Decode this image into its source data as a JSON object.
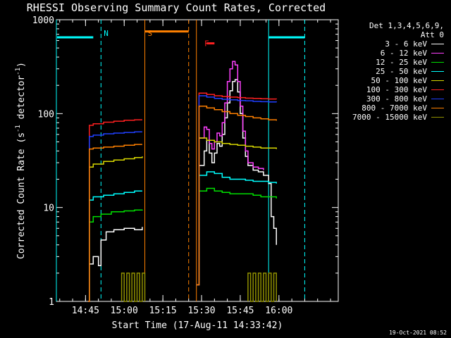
{
  "title": "RHESSI Observing Summary Count Rates, Corrected",
  "timestamp": "19-Oct-2021 08:52",
  "legend": {
    "header_line1": "Det 1,3,4,5,6,9,",
    "header_line2": "Att 0",
    "items": [
      {
        "label": "3 - 6 keV",
        "color": "#ffffff"
      },
      {
        "label": "6 - 12 keV",
        "color": "#ff40ff"
      },
      {
        "label": "12 - 25 keV",
        "color": "#00e000"
      },
      {
        "label": "25 - 50 keV",
        "color": "#00ffff"
      },
      {
        "label": "50 - 100 keV",
        "color": "#d8d800"
      },
      {
        "label": "100 - 300 keV",
        "color": "#ff2020"
      },
      {
        "label": "300 - 800 keV",
        "color": "#2040ff"
      },
      {
        "label": "800 - 7000 keV",
        "color": "#ff8000"
      },
      {
        "label": "7000 - 15000 keV",
        "color": "#909000"
      }
    ]
  },
  "chart_data": {
    "type": "line",
    "title": "RHESSI Observing Summary Count Rates, Corrected",
    "xlabel": "Start Time (17-Aug-11 14:33:42)",
    "ylabel": "Corrected Count Rate (s-1 detector-1)",
    "ylabel_parts": {
      "main": "Corrected Count Rate (s",
      "exp1": "-1",
      "mid": " detector",
      "exp2": "-1",
      "end": ")"
    },
    "y_scale": "log",
    "ylim": [
      1,
      1000
    ],
    "xlim": [
      "14:33:42",
      "16:23:00"
    ],
    "x_ticks": [
      "14:45",
      "15:00",
      "15:15",
      "15:30",
      "15:45",
      "16:00"
    ],
    "y_ticks": [
      "1",
      "10",
      "100",
      "1000"
    ],
    "annotations": [
      {
        "text": "N",
        "time": "14:51",
        "color": "#00ffff"
      },
      {
        "text": "S",
        "time": "15:08",
        "color": "#ff8000"
      },
      {
        "text": "F",
        "time": "15:30",
        "color": "#ff2020"
      }
    ],
    "markers": [
      {
        "type": "night_bar",
        "from": "14:33:42",
        "to": "14:48",
        "y": 650,
        "color": "#00ffff"
      },
      {
        "type": "night_bar",
        "from": "15:56",
        "to": "16:10",
        "y": 650,
        "color": "#00ffff"
      },
      {
        "type": "saa_bar",
        "from": "15:08",
        "to": "15:25",
        "y": 750,
        "color": "#ff8000"
      },
      {
        "type": "flare_bar",
        "from": "15:32",
        "to": "15:35",
        "y": 560,
        "color": "#ff2020"
      }
    ],
    "vlines": [
      {
        "time": "14:33:42",
        "color": "#00ffff",
        "style": "solid"
      },
      {
        "time": "14:51",
        "color": "#00ffff",
        "style": "dashed"
      },
      {
        "time": "15:08",
        "color": "#ff8000",
        "style": "solid"
      },
      {
        "time": "15:25",
        "color": "#ff8000",
        "style": "dashed"
      },
      {
        "time": "15:28",
        "color": "#ff8000",
        "style": "solid"
      },
      {
        "time": "15:56",
        "color": "#00ffff",
        "style": "solid"
      },
      {
        "time": "16:10",
        "color": "#00ffff",
        "style": "dashed"
      }
    ],
    "series": [
      {
        "name": "3 - 6 keV",
        "color": "#ffffff",
        "segments": [
          [
            [
              "14:46",
              1.0
            ],
            [
              "14:46.5",
              2.5
            ],
            [
              "14:48",
              3.0
            ],
            [
              "14:50",
              2.4
            ],
            [
              "14:51",
              4.5
            ],
            [
              "14:53",
              5.5
            ],
            [
              "14:56",
              5.8
            ],
            [
              "15:00",
              6.0
            ],
            [
              "15:04",
              5.8
            ],
            [
              "15:07",
              6.2
            ]
          ],
          [
            [
              "15:28",
              1.5
            ],
            [
              "15:29",
              28
            ],
            [
              "15:31",
              40
            ],
            [
              "15:32",
              52
            ],
            [
              "15:33",
              38
            ],
            [
              "15:34",
              30
            ],
            [
              "15:35",
              38
            ],
            [
              "15:36",
              48
            ],
            [
              "15:37",
              45
            ],
            [
              "15:38",
              60
            ],
            [
              "15:39",
              90
            ],
            [
              "15:40",
              130
            ],
            [
              "15:41",
              175
            ],
            [
              "15:42",
              220
            ],
            [
              "15:43",
              230
            ],
            [
              "15:44",
              170
            ],
            [
              "15:45",
              100
            ],
            [
              "15:46",
              55
            ],
            [
              "15:47",
              35
            ],
            [
              "15:48",
              28
            ],
            [
              "15:50",
              25
            ],
            [
              "15:52",
              24
            ],
            [
              "15:54",
              22
            ],
            [
              "15:56",
              18
            ],
            [
              "15:57",
              8
            ],
            [
              "15:58",
              6
            ],
            [
              "15:59",
              4
            ]
          ]
        ]
      },
      {
        "name": "6 - 12 keV",
        "color": "#ff40ff",
        "segments": [
          [
            [
              "15:28",
              1.5
            ],
            [
              "15:29",
              55
            ],
            [
              "15:31",
              72
            ],
            [
              "15:32",
              68
            ],
            [
              "15:33",
              48
            ],
            [
              "15:34",
              42
            ],
            [
              "15:35",
              50
            ],
            [
              "15:36",
              62
            ],
            [
              "15:37",
              58
            ],
            [
              "15:38",
              80
            ],
            [
              "15:39",
              130
            ],
            [
              "15:40",
              220
            ],
            [
              "15:41",
              300
            ],
            [
              "15:42",
              360
            ],
            [
              "15:43",
              330
            ],
            [
              "15:44",
              220
            ],
            [
              "15:45",
              120
            ],
            [
              "15:46",
              65
            ],
            [
              "15:47",
              40
            ],
            [
              "15:48",
              30
            ],
            [
              "15:50",
              27
            ],
            [
              "15:52",
              26
            ],
            [
              "15:54",
              25
            ]
          ]
        ]
      },
      {
        "name": "12 - 25 keV",
        "color": "#00e000",
        "segments": [
          [
            [
              "14:46",
              1.0
            ],
            [
              "14:46.5",
              7
            ],
            [
              "14:48",
              8
            ],
            [
              "14:51",
              8.5
            ],
            [
              "14:55",
              9
            ],
            [
              "15:00",
              9.2
            ],
            [
              "15:04",
              9.4
            ],
            [
              "15:07",
              9.5
            ]
          ],
          [
            [
              "15:28",
              1.5
            ],
            [
              "15:29",
              15
            ],
            [
              "15:32",
              16
            ],
            [
              "15:35",
              15
            ],
            [
              "15:38",
              14.5
            ],
            [
              "15:41",
              14
            ],
            [
              "15:44",
              14
            ],
            [
              "15:47",
              14
            ],
            [
              "15:50",
              13.5
            ],
            [
              "15:53",
              13
            ],
            [
              "15:56",
              13
            ],
            [
              "15:59",
              12.5
            ]
          ]
        ]
      },
      {
        "name": "25 - 50 keV",
        "color": "#00ffff",
        "segments": [
          [
            [
              "14:46",
              1.0
            ],
            [
              "14:46.5",
              12
            ],
            [
              "14:48",
              13
            ],
            [
              "14:52",
              13.5
            ],
            [
              "14:56",
              14
            ],
            [
              "15:00",
              14.5
            ],
            [
              "15:04",
              15
            ],
            [
              "15:07",
              15
            ]
          ],
          [
            [
              "15:28",
              1.5
            ],
            [
              "15:29",
              22
            ],
            [
              "15:32",
              24
            ],
            [
              "15:35",
              23
            ],
            [
              "15:38",
              21
            ],
            [
              "15:41",
              20
            ],
            [
              "15:44",
              20
            ],
            [
              "15:47",
              19.5
            ],
            [
              "15:50",
              19
            ],
            [
              "15:53",
              19
            ],
            [
              "15:56",
              18.5
            ],
            [
              "15:59",
              18
            ]
          ]
        ]
      },
      {
        "name": "50 - 100 keV",
        "color": "#d8d800",
        "segments": [
          [
            [
              "14:46",
              1.0
            ],
            [
              "14:46.5",
              27
            ],
            [
              "14:48",
              29
            ],
            [
              "14:52",
              31
            ],
            [
              "14:56",
              32
            ],
            [
              "15:00",
              33
            ],
            [
              "15:04",
              34
            ],
            [
              "15:07",
              35
            ]
          ],
          [
            [
              "15:28",
              1.5
            ],
            [
              "15:29",
              55
            ],
            [
              "15:32",
              52
            ],
            [
              "15:35",
              50
            ],
            [
              "15:38",
              48
            ],
            [
              "15:41",
              47
            ],
            [
              "15:44",
              46
            ],
            [
              "15:47",
              45
            ],
            [
              "15:50",
              44
            ],
            [
              "15:53",
              43
            ],
            [
              "15:56",
              43
            ],
            [
              "15:59",
              42
            ]
          ]
        ]
      },
      {
        "name": "100 - 300 keV",
        "color": "#ff2020",
        "segments": [
          [
            [
              "14:46",
              1.0
            ],
            [
              "14:46.5",
              75
            ],
            [
              "14:48",
              78
            ],
            [
              "14:52",
              81
            ],
            [
              "14:56",
              83
            ],
            [
              "15:00",
              85
            ],
            [
              "15:04",
              86
            ],
            [
              "15:07",
              86
            ]
          ],
          [
            [
              "15:28",
              1.5
            ],
            [
              "15:29",
              165
            ],
            [
              "15:32",
              160
            ],
            [
              "15:35",
              155
            ],
            [
              "15:38",
              152
            ],
            [
              "15:41",
              150
            ],
            [
              "15:44",
              148
            ],
            [
              "15:47",
              146
            ],
            [
              "15:50",
              145
            ],
            [
              "15:53",
              144
            ],
            [
              "15:56",
              143
            ],
            [
              "15:59",
              142
            ]
          ]
        ]
      },
      {
        "name": "300 - 800 keV",
        "color": "#2040ff",
        "segments": [
          [
            [
              "14:46",
              1.0
            ],
            [
              "14:46.5",
              57
            ],
            [
              "14:48",
              59
            ],
            [
              "14:52",
              61
            ],
            [
              "14:56",
              62
            ],
            [
              "15:00",
              63
            ],
            [
              "15:04",
              64
            ],
            [
              "15:07",
              64
            ]
          ],
          [
            [
              "15:28",
              1.5
            ],
            [
              "15:29",
              155
            ],
            [
              "15:32",
              150
            ],
            [
              "15:35",
              145
            ],
            [
              "15:38",
              142
            ],
            [
              "15:41",
              140
            ],
            [
              "15:44",
              138
            ],
            [
              "15:47",
              137
            ],
            [
              "15:50",
              135
            ],
            [
              "15:53",
              134
            ],
            [
              "15:56",
              133
            ],
            [
              "15:59",
              132
            ]
          ]
        ]
      },
      {
        "name": "800 - 7000 keV",
        "color": "#ff8000",
        "segments": [
          [
            [
              "14:46",
              1.0
            ],
            [
              "14:46.5",
              42
            ],
            [
              "14:48",
              43
            ],
            [
              "14:52",
              44
            ],
            [
              "14:56",
              45
            ],
            [
              "15:00",
              46
            ],
            [
              "15:04",
              47
            ],
            [
              "15:07",
              47
            ]
          ],
          [
            [
              "15:28",
              1.5
            ],
            [
              "15:29",
              120
            ],
            [
              "15:32",
              115
            ],
            [
              "15:35",
              110
            ],
            [
              "15:38",
              105
            ],
            [
              "15:41",
              100
            ],
            [
              "15:44",
              96
            ],
            [
              "15:47",
              93
            ],
            [
              "15:50",
              90
            ],
            [
              "15:53",
              88
            ],
            [
              "15:56",
              86
            ],
            [
              "15:59",
              84
            ]
          ]
        ]
      },
      {
        "name": "7000 - 15000 keV",
        "color": "#909000",
        "segments": [
          [
            [
              "14:59",
              1.0
            ],
            [
              "14:59",
              2.0
            ],
            [
              "15:00",
              1.0
            ],
            [
              "15:01",
              2.0
            ],
            [
              "15:02",
              1.0
            ],
            [
              "15:03",
              2.0
            ],
            [
              "15:04",
              1.0
            ],
            [
              "15:05",
              2.0
            ],
            [
              "15:06",
              1.0
            ],
            [
              "15:07",
              2.0
            ],
            [
              "15:08",
              1.0
            ]
          ],
          [
            [
              "15:48",
              1.0
            ],
            [
              "15:48",
              2.0
            ],
            [
              "15:49",
              1.0
            ],
            [
              "15:50",
              2.0
            ],
            [
              "15:51",
              1.0
            ],
            [
              "15:52",
              2.0
            ],
            [
              "15:53",
              1.0
            ],
            [
              "15:54",
              2.0
            ],
            [
              "15:55",
              1.0
            ],
            [
              "15:56",
              2.0
            ],
            [
              "15:57",
              1.0
            ],
            [
              "15:58",
              2.0
            ],
            [
              "15:59",
              1.0
            ]
          ]
        ]
      }
    ]
  }
}
